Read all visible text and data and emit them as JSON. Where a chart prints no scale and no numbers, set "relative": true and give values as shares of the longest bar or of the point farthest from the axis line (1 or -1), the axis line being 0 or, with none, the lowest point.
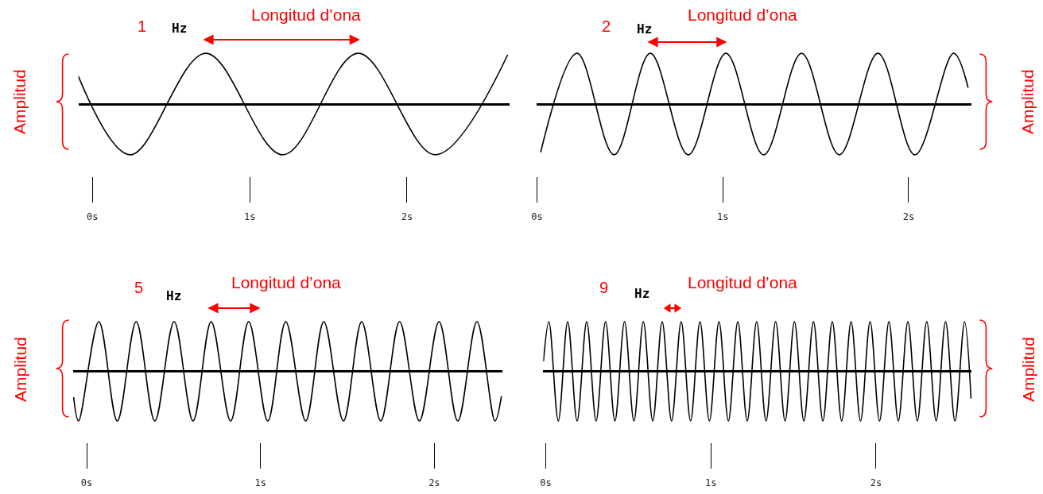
{
  "chart_data": [
    {
      "type": "line",
      "relative": true,
      "tick_labels": "x",
      "xlim": [
        -0.09,
        2.65
      ],
      "xticks": [
        {
          "value": 0,
          "label": "0s"
        },
        {
          "value": 1,
          "label": "1s"
        },
        {
          "value": 2,
          "label": "2s"
        }
      ],
      "annotations": [
        "1",
        "Hz",
        "Longitud d’ona",
        "Amplitud"
      ],
      "x": [
        -0.09,
        0.24,
        0.72,
        1.21,
        1.69,
        2.18,
        2.64
      ],
      "series": [
        {
          "color": "#000000",
          "values": [
            0.55,
            -1,
            1,
            -1,
            1,
            -1,
            0.97
          ]
        }
      ]
    },
    {
      "type": "line",
      "relative": true,
      "tick_labels": "x",
      "xlim": [
        0.0,
        2.34
      ],
      "xticks": [
        {
          "value": 0,
          "label": "0s"
        },
        {
          "value": 1,
          "label": "1s"
        },
        {
          "value": 2,
          "label": "2s"
        }
      ],
      "annotations": [
        "2",
        "Hz",
        "Longitud d’ona",
        "Amplitud"
      ],
      "x": [
        0.02,
        0.216,
        0.415,
        0.61,
        0.814,
        1.017,
        1.22,
        1.424,
        1.627,
        1.835,
        2.034,
        2.242,
        2.32
      ],
      "series": [
        {
          "color": "#000000",
          "values": [
            -0.95,
            1,
            -1,
            1,
            -1,
            1,
            -1,
            1,
            -1,
            1,
            -1,
            1,
            0.32
          ]
        }
      ]
    },
    {
      "type": "line",
      "relative": true,
      "tick_labels": "x",
      "xlim": [
        -0.08,
        2.39
      ],
      "xticks": [
        {
          "value": 0,
          "label": "0s"
        },
        {
          "value": 1,
          "label": "1s"
        },
        {
          "value": 2,
          "label": "2s"
        }
      ],
      "annotations": [
        "5",
        "Hz",
        "Longitud d’ona",
        "Amplitud"
      ],
      "x": [
        -0.075,
        -0.047,
        0.07,
        0.176,
        0.285,
        0.392,
        0.503,
        0.612,
        0.716,
        0.828,
        0.932,
        1.042,
        1.145,
        1.26,
        1.364,
        1.477,
        1.582,
        1.692,
        1.8,
        1.914,
        2.027,
        2.135,
        2.245,
        2.349,
        2.386
      ],
      "series": [
        {
          "color": "#000000",
          "values": [
            -0.52,
            -1,
            1,
            -1,
            1,
            -1,
            1,
            -1,
            1,
            -1,
            1,
            -1,
            1,
            -1,
            1,
            -1,
            1,
            -1,
            1,
            -1,
            1,
            -1,
            1,
            -1,
            -0.5
          ]
        }
      ]
    },
    {
      "type": "line",
      "relative": true,
      "tick_labels": "x",
      "xlim": [
        -0.015,
        2.58
      ],
      "xticks": [
        {
          "value": 0,
          "label": "0s"
        },
        {
          "value": 1,
          "label": "1s"
        },
        {
          "value": 2,
          "label": "2s"
        }
      ],
      "annotations": [
        "9",
        "Hz",
        "Longitud d’ona",
        "Amplitud"
      ],
      "x": [
        -0.014,
        0.019,
        0.076,
        0.133,
        0.19,
        0.248,
        0.305,
        0.362,
        0.419,
        0.477,
        0.534,
        0.591,
        0.648,
        0.705,
        0.762,
        0.82,
        0.877,
        0.934,
        0.991,
        1.049,
        1.106,
        1.163,
        1.22,
        1.277,
        1.334,
        1.392,
        1.449,
        1.506,
        1.563,
        1.621,
        1.678,
        1.735,
        1.792,
        1.849,
        1.906,
        1.964,
        2.021,
        2.078,
        2.135,
        2.193,
        2.25,
        2.307,
        2.364,
        2.421,
        2.478,
        2.536,
        2.575
      ],
      "series": [
        {
          "color": "#000000",
          "values": [
            0.2,
            1,
            -1,
            1,
            -1,
            1,
            -1,
            1,
            -1,
            1,
            -1,
            1,
            -1,
            1,
            -1,
            1,
            -1,
            1,
            -1,
            1,
            -1,
            1,
            -1,
            1,
            -1,
            1,
            -1,
            1,
            -1,
            1,
            -1,
            1,
            -1,
            1,
            -1,
            1,
            -1,
            1,
            -1,
            1,
            -1,
            1,
            -1,
            1,
            -1,
            1,
            -0.55
          ]
        }
      ]
    }
  ]
}
